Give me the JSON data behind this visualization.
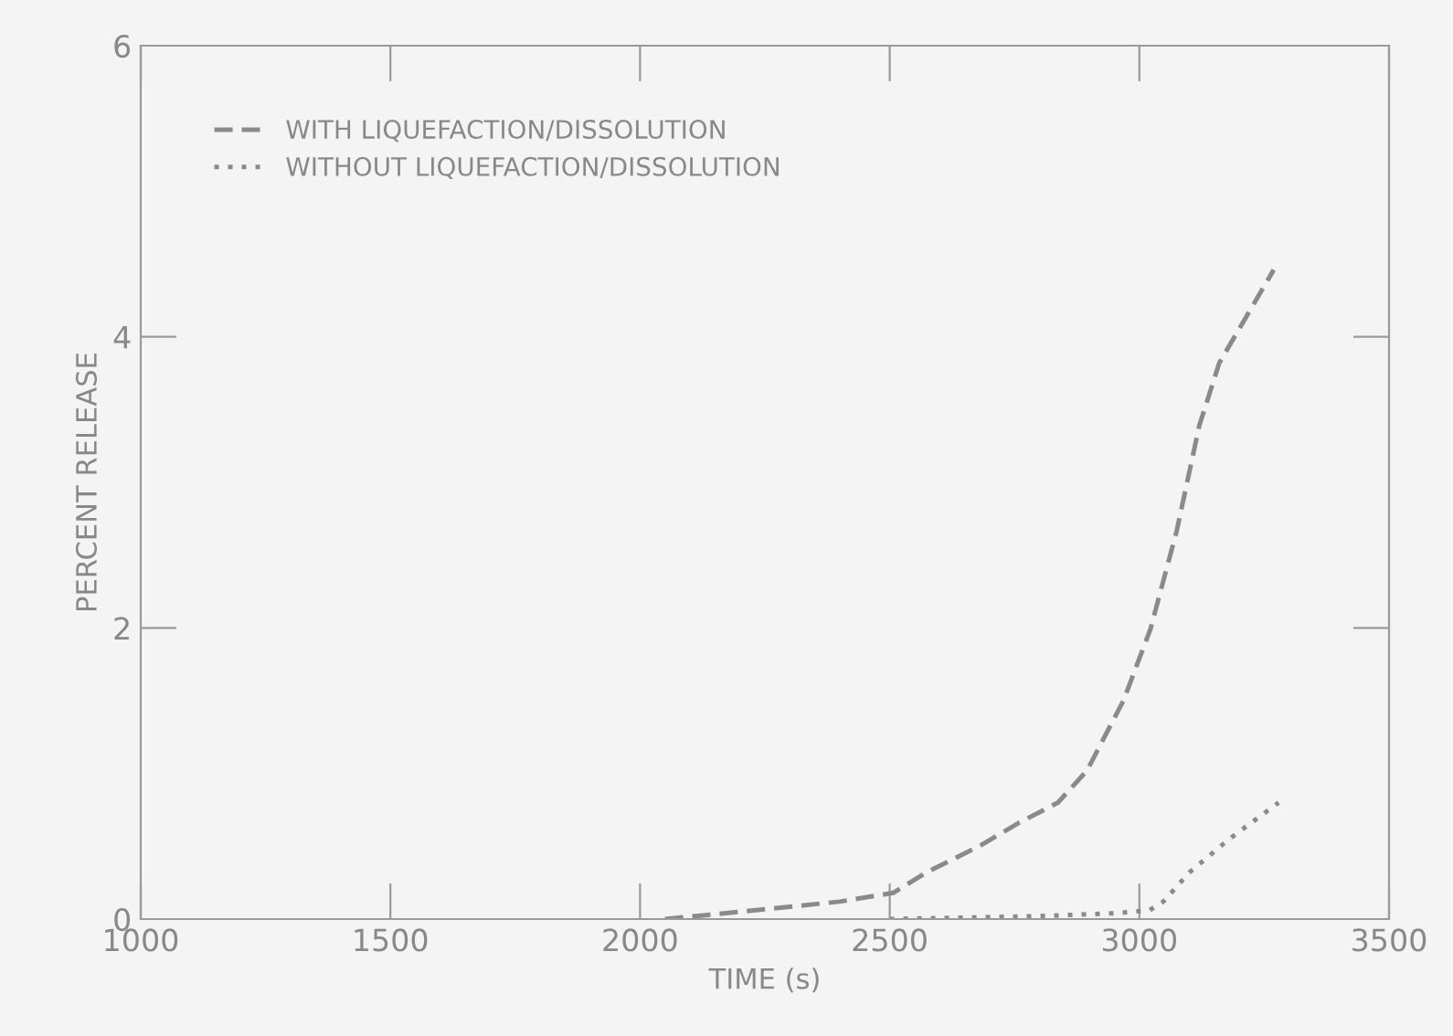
{
  "chart_data": {
    "type": "line",
    "xlabel": "TIME (s)",
    "ylabel": "PERCENT RELEASE",
    "xlim": [
      1000,
      3500
    ],
    "xticks": [
      1000,
      1500,
      2000,
      2500,
      3000,
      3500
    ],
    "ylim": [
      0,
      6
    ],
    "yticks": [
      0,
      2,
      4,
      6
    ],
    "grid": false,
    "legend": "top left",
    "series": [
      {
        "name": "WITH LIQUEFACTION/DISSOLUTION",
        "color": "#8a8a8a",
        "line_style": "dashed",
        "x": [
          2050,
          2200,
          2400,
          2507,
          2573,
          2679,
          2758,
          2837,
          2895,
          2968,
          3022,
          3075,
          3120,
          3160,
          3269
        ],
        "values": [
          0.0,
          0.05,
          0.12,
          0.18,
          0.32,
          0.5,
          0.66,
          0.8,
          1.02,
          1.5,
          1.99,
          2.67,
          3.39,
          3.82,
          4.46
        ]
      },
      {
        "name": "WITHOUT LIQUEFACTION/DISSOLUTION",
        "color": "#8a8a8a",
        "line_style": "dotted",
        "x": [
          2500,
          2800,
          2950,
          3020,
          3048,
          3100,
          3180,
          3279
        ],
        "values": [
          0.0,
          0.02,
          0.04,
          0.06,
          0.12,
          0.32,
          0.55,
          0.8
        ]
      }
    ]
  }
}
